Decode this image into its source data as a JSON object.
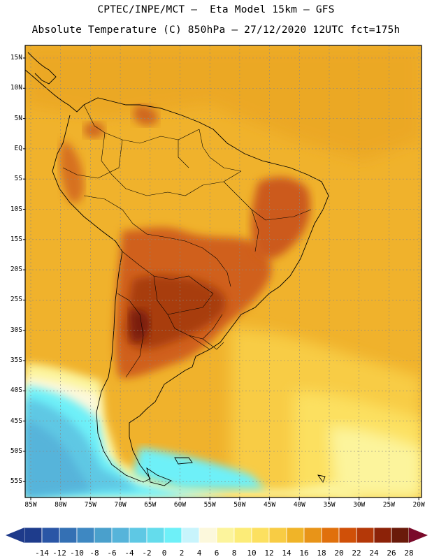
{
  "title_line1": "CPTEC/INPE/MCT –  Eta Model 15km – GFS",
  "title_line2": "Absolute Temperature (C) 850hPa – 27/12/2020 12UTC fct=175h",
  "lat_labels": [
    "15N",
    "10N",
    "5N",
    "EQ",
    "5S",
    "10S",
    "15S",
    "20S",
    "25S",
    "30S",
    "35S",
    "40S",
    "45S",
    "50S",
    "55S"
  ],
  "lon_labels": [
    "85W",
    "80W",
    "75W",
    "70W",
    "65W",
    "60W",
    "55W",
    "50W",
    "45W",
    "40W",
    "35W",
    "30W",
    "25W",
    "20W"
  ],
  "colorbar": {
    "labels": [
      "-14",
      "-12",
      "-10",
      "-8",
      "-6",
      "-4",
      "-2",
      "0",
      "2",
      "4",
      "6",
      "8",
      "10",
      "12",
      "14",
      "16",
      "18",
      "20",
      "22",
      "24",
      "26",
      "28"
    ],
    "colors": [
      "#1e3c8c",
      "#2a56a6",
      "#3470b4",
      "#3e88c2",
      "#4aa0cc",
      "#56b4da",
      "#5ec8e4",
      "#64dcec",
      "#6ef0f8",
      "#c8f4fc",
      "#fcf8dc",
      "#fcf49c",
      "#fcec78",
      "#fce060",
      "#f8cc44",
      "#f0b428",
      "#e89418",
      "#e0700c",
      "#d05008",
      "#b43808",
      "#8c2208",
      "#6a1a0a"
    ],
    "over_color": "#7a0a2a",
    "under_color": "#1e3a8a"
  },
  "colors": {
    "background_warm": "#f0b22c",
    "ocean_cold": "#5ec8e4",
    "land_hot": "#c8561a",
    "hot_core": "#8c2a10"
  }
}
